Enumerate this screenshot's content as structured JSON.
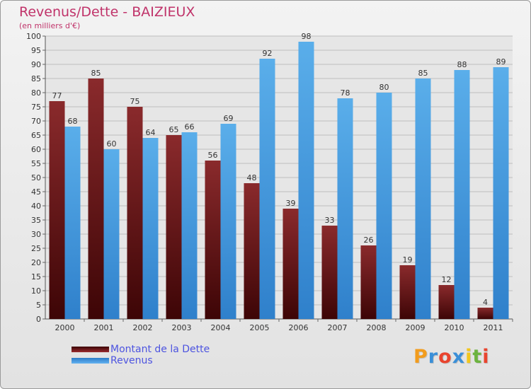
{
  "chart_data": {
    "type": "bar",
    "title": "Revenus/Dette - BAIZIEUX",
    "subtitle": "(en milliers d'€)",
    "categories": [
      "2000",
      "2001",
      "2002",
      "2003",
      "2004",
      "2005",
      "2006",
      "2007",
      "2008",
      "2009",
      "2010",
      "2011"
    ],
    "series": [
      {
        "name": "Montant de la Dette",
        "color": "#7a1f22",
        "values": [
          77,
          85,
          75,
          65,
          56,
          48,
          39,
          33,
          26,
          19,
          12,
          4
        ]
      },
      {
        "name": "Revenus",
        "color": "#4ea3e6",
        "values": [
          68,
          60,
          64,
          66,
          69,
          92,
          98,
          78,
          80,
          85,
          88,
          89
        ]
      }
    ],
    "ylim": [
      0,
      100
    ],
    "ytick_step": 5,
    "grid": true,
    "legend_position": "bottom-left"
  },
  "logo": {
    "text": "Proxiti",
    "letters": [
      "P",
      "r",
      "o",
      "x",
      "i",
      "t",
      "i"
    ],
    "colors": [
      "#f29c1d",
      "#3a8fd8",
      "#e9442e",
      "#3a8fd8",
      "#f2c61d",
      "#6cb33f",
      "#e9442e"
    ]
  }
}
